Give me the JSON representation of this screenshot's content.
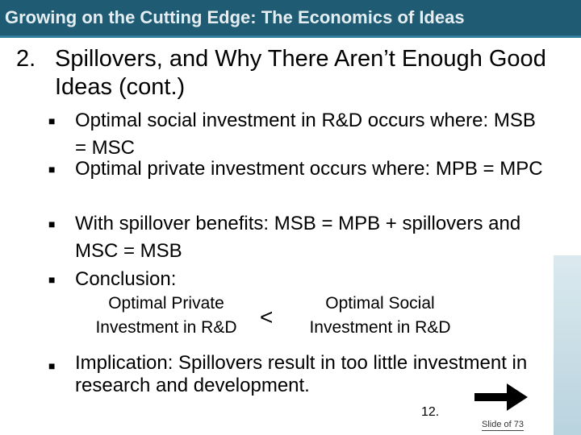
{
  "header": {
    "title": "Growing on the Cutting Edge: The Economics of Ideas"
  },
  "heading": {
    "number": "2.",
    "text": "Spillovers, and Why There Aren’t Enough Good Ideas (cont.)"
  },
  "bullets": [
    "Optimal social investment in R&D occurs where: MSB = MSC",
    "Optimal private investment occurs where: MPB = MPC",
    "With spillover benefits: MSB = MPB + spillovers and MSC = MSB",
    "Conclusion:"
  ],
  "conclusion": {
    "left": "Optimal Private Investment in R&D",
    "symbol": "<",
    "right": "Optimal Social Investment in R&D"
  },
  "implication": "Implication: Spillovers result in too little investment in research and development.",
  "footer": {
    "page_number": "12.",
    "slide_label": "Slide of 73"
  },
  "icons": {
    "bullet": "square-bullet-icon",
    "next": "right-arrow-icon"
  }
}
